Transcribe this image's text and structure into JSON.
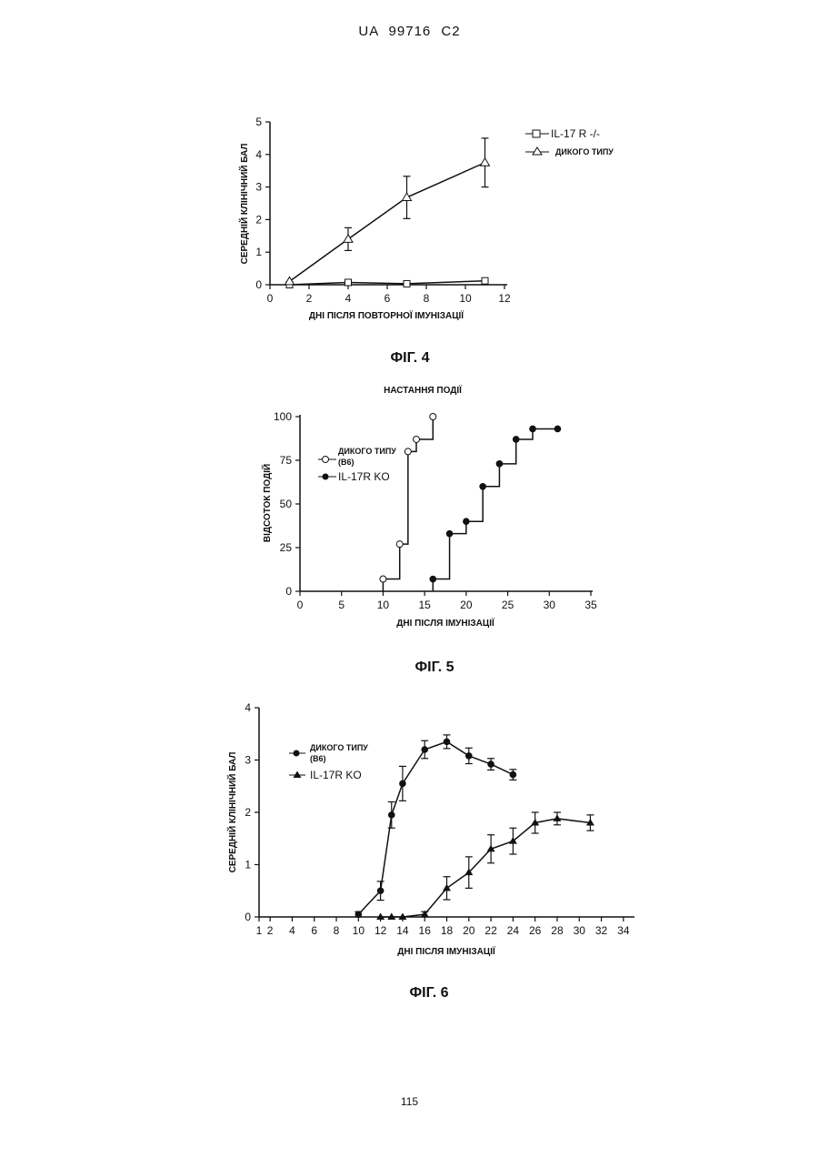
{
  "header": {
    "text": "UA   99716   C2"
  },
  "page_number": "115",
  "chart_data": [
    {
      "type": "line",
      "caption": "ФІГ. 4",
      "title": "",
      "xlabel": "ДНІ ПІСЛЯ ПОВТОРНОЇ ІМУНІЗАЦІЇ",
      "ylabel": "СЕРЕДНІЙ КЛІНІЧНИЙ БАЛ",
      "xlim": [
        0,
        12
      ],
      "ylim": [
        0,
        5
      ],
      "xticks": [
        0,
        2,
        4,
        6,
        8,
        10,
        12
      ],
      "yticks": [
        0,
        1,
        2,
        3,
        4,
        5
      ],
      "legend_position": "top-right",
      "series": [
        {
          "name": "IL-17 R -/-",
          "marker": "square",
          "x": [
            1,
            4,
            7,
            11
          ],
          "y": [
            0.0,
            0.07,
            0.03,
            0.12
          ],
          "err": [
            0,
            0.02,
            0.02,
            0.03
          ]
        },
        {
          "name": "ДИКОГО ТИПУ",
          "marker": "triangle",
          "x": [
            1,
            4,
            7,
            11
          ],
          "y": [
            0.1,
            1.4,
            2.68,
            3.75
          ],
          "err": [
            0,
            0.35,
            0.65,
            0.75
          ]
        }
      ]
    },
    {
      "type": "step",
      "caption": "ФІГ. 5",
      "title": "НАСТАННЯ ПОДІЇ",
      "xlabel": "ДНІ ПІСЛЯ ІМУНІЗАЦІЇ",
      "ylabel": "ВІДСОТОК ПОДІЙ",
      "xlim": [
        0,
        35
      ],
      "ylim": [
        0,
        100
      ],
      "xticks": [
        0,
        5,
        10,
        15,
        20,
        25,
        30,
        35
      ],
      "yticks": [
        0,
        25,
        50,
        75,
        100
      ],
      "legend_position": "top-left",
      "series": [
        {
          "name_line1": "ДИКОГО ТИПУ",
          "name_line2": "(B6)",
          "marker": "circle-open",
          "x": [
            10,
            12,
            13,
            14,
            16
          ],
          "y": [
            7,
            27,
            80,
            87,
            100
          ]
        },
        {
          "name": "IL-17R KO",
          "marker": "circle-filled",
          "x": [
            16,
            18,
            20,
            22,
            24,
            26,
            28,
            31
          ],
          "y": [
            7,
            33,
            40,
            60,
            73,
            87,
            93,
            93
          ]
        }
      ]
    },
    {
      "type": "line",
      "caption": "ФІГ. 6",
      "title": "",
      "xlabel": "ДНІ ПІСЛЯ ІМУНІЗАЦІЇ",
      "ylabel": "СЕРЕДНІЙ КЛІНІЧНИЙ БАЛ",
      "xlim": [
        1,
        35
      ],
      "ylim": [
        0,
        4
      ],
      "xticks": [
        1,
        2,
        4,
        6,
        8,
        10,
        12,
        14,
        16,
        18,
        20,
        22,
        24,
        26,
        28,
        30,
        32,
        34
      ],
      "yticks": [
        0,
        1,
        2,
        3,
        4
      ],
      "legend_position": "top-left",
      "series": [
        {
          "name_line1": "ДИКОГО ТИПУ",
          "name_line2": "(B6)",
          "marker": "circle-filled",
          "x": [
            10,
            12,
            13,
            14,
            16,
            18,
            20,
            22,
            24
          ],
          "y": [
            0.05,
            0.5,
            1.95,
            2.55,
            3.2,
            3.35,
            3.08,
            2.92,
            2.72
          ],
          "err": [
            0.05,
            0.18,
            0.25,
            0.33,
            0.17,
            0.13,
            0.15,
            0.11,
            0.1
          ]
        },
        {
          "name": "IL-17R KO",
          "marker": "triangle-filled",
          "x": [
            12,
            13,
            14,
            16,
            18,
            20,
            22,
            24,
            26,
            28,
            31
          ],
          "y": [
            0,
            0,
            0,
            0.05,
            0.55,
            0.85,
            1.3,
            1.45,
            1.8,
            1.88,
            1.8
          ],
          "err": [
            0,
            0,
            0,
            0.05,
            0.22,
            0.3,
            0.27,
            0.25,
            0.2,
            0.12,
            0.15
          ]
        }
      ]
    }
  ]
}
